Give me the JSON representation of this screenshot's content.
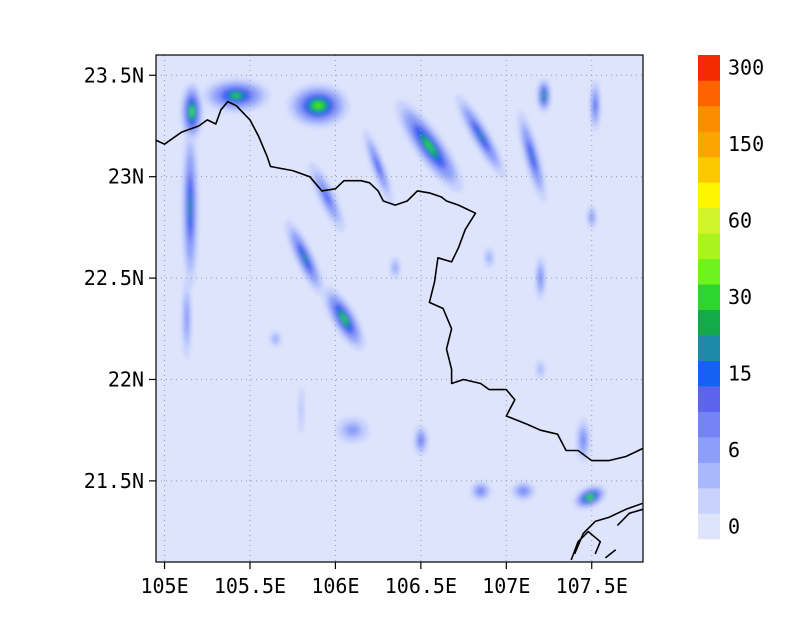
{
  "map": {
    "lon_range": [
      104.95,
      107.8
    ],
    "lat_range": [
      21.1,
      23.6
    ],
    "x_ticks": [
      {
        "value": 105.0,
        "label": "105E"
      },
      {
        "value": 105.5,
        "label": "105.5E"
      },
      {
        "value": 106.0,
        "label": "106E"
      },
      {
        "value": 106.5,
        "label": "106.5E"
      },
      {
        "value": 107.0,
        "label": "107E"
      },
      {
        "value": 107.5,
        "label": "107.5E"
      }
    ],
    "y_ticks": [
      {
        "value": 23.5,
        "label": "23.5N"
      },
      {
        "value": 23.0,
        "label": "23N"
      },
      {
        "value": 22.5,
        "label": "22.5N"
      },
      {
        "value": 22.0,
        "label": "22N"
      },
      {
        "value": 21.5,
        "label": "21.5N"
      }
    ],
    "gridlines": true,
    "background_color": "#dde4fc",
    "border_color": "#000000"
  },
  "colorbar": {
    "colors": [
      "#dde4fc",
      "#c8d2fc",
      "#a8b8fa",
      "#8c9efa",
      "#7484f6",
      "#5c64ee",
      "#1462f4",
      "#1c8aa8",
      "#12aa4a",
      "#2cd62c",
      "#6ef41c",
      "#a8f41c",
      "#d2f42c",
      "#fcf400",
      "#fcc800",
      "#fca400",
      "#fc8c00",
      "#fc6400",
      "#f42a00"
    ],
    "labels": [
      {
        "index": 0,
        "text": "0"
      },
      {
        "index": 3,
        "text": "6"
      },
      {
        "index": 6,
        "text": "15"
      },
      {
        "index": 9,
        "text": "30"
      },
      {
        "index": 12,
        "text": "60"
      },
      {
        "index": 15,
        "text": "150"
      },
      {
        "index": 18,
        "text": "300"
      }
    ]
  },
  "precip_fields": [
    {
      "lon": 105.15,
      "lat": 22.85,
      "rlon": 0.07,
      "rlat": 0.6,
      "rot": 0,
      "amp": 30
    },
    {
      "lon": 105.16,
      "lat": 23.32,
      "rlon": 0.09,
      "rlat": 0.2,
      "rot": 0,
      "amp": 55
    },
    {
      "lon": 105.13,
      "lat": 22.3,
      "rlon": 0.05,
      "rlat": 0.35,
      "rot": 0,
      "amp": 12
    },
    {
      "lon": 105.42,
      "lat": 23.4,
      "rlon": 0.28,
      "rlat": 0.12,
      "rot": 0,
      "amp": 40
    },
    {
      "lon": 105.9,
      "lat": 23.35,
      "rlon": 0.25,
      "rlat": 0.15,
      "rot": 0,
      "amp": 55
    },
    {
      "lon": 105.82,
      "lat": 22.6,
      "rlon": 0.08,
      "rlat": 0.3,
      "rot": -25,
      "amp": 30
    },
    {
      "lon": 106.05,
      "lat": 22.3,
      "rlon": 0.1,
      "rlat": 0.25,
      "rot": -30,
      "amp": 45
    },
    {
      "lon": 105.95,
      "lat": 22.9,
      "rlon": 0.08,
      "rlat": 0.3,
      "rot": -25,
      "amp": 18
    },
    {
      "lon": 106.55,
      "lat": 23.15,
      "rlon": 0.12,
      "rlat": 0.38,
      "rot": -35,
      "amp": 45
    },
    {
      "lon": 106.25,
      "lat": 23.05,
      "rlon": 0.06,
      "rlat": 0.3,
      "rot": -20,
      "amp": 20
    },
    {
      "lon": 106.85,
      "lat": 23.2,
      "rlon": 0.08,
      "rlat": 0.35,
      "rot": -30,
      "amp": 28
    },
    {
      "lon": 107.15,
      "lat": 23.1,
      "rlon": 0.07,
      "rlat": 0.35,
      "rot": -15,
      "amp": 25
    },
    {
      "lon": 107.22,
      "lat": 23.4,
      "rlon": 0.06,
      "rlat": 0.12,
      "rot": 0,
      "amp": 40
    },
    {
      "lon": 107.52,
      "lat": 23.35,
      "rlon": 0.05,
      "rlat": 0.2,
      "rot": 0,
      "amp": 20
    },
    {
      "lon": 107.49,
      "lat": 21.42,
      "rlon": 0.14,
      "rlat": 0.07,
      "rot": -25,
      "amp": 60
    },
    {
      "lon": 107.45,
      "lat": 21.7,
      "rlon": 0.07,
      "rlat": 0.18,
      "rot": 0,
      "amp": 14
    },
    {
      "lon": 106.85,
      "lat": 21.45,
      "rlon": 0.1,
      "rlat": 0.08,
      "rot": 0,
      "amp": 15
    },
    {
      "lon": 107.1,
      "lat": 21.45,
      "rlon": 0.12,
      "rlat": 0.08,
      "rot": 0,
      "amp": 14
    },
    {
      "lon": 106.5,
      "lat": 21.7,
      "rlon": 0.07,
      "rlat": 0.12,
      "rot": 0,
      "amp": 16
    },
    {
      "lon": 106.1,
      "lat": 21.75,
      "rlon": 0.18,
      "rlat": 0.12,
      "rot": 0,
      "amp": 10
    },
    {
      "lon": 107.2,
      "lat": 22.5,
      "rlon": 0.05,
      "rlat": 0.18,
      "rot": 0,
      "amp": 15
    },
    {
      "lon": 106.35,
      "lat": 22.55,
      "rlon": 0.06,
      "rlat": 0.1,
      "rot": 0,
      "amp": 9
    },
    {
      "lon": 105.65,
      "lat": 22.2,
      "rlon": 0.07,
      "rlat": 0.08,
      "rot": 0,
      "amp": 8
    },
    {
      "lon": 107.5,
      "lat": 22.8,
      "rlon": 0.05,
      "rlat": 0.1,
      "rot": 0,
      "amp": 12
    },
    {
      "lon": 107.2,
      "lat": 22.05,
      "rlon": 0.06,
      "rlat": 0.1,
      "rot": 0,
      "amp": 7
    },
    {
      "lon": 106.9,
      "lat": 22.6,
      "rlon": 0.06,
      "rlat": 0.1,
      "rot": 0,
      "amp": 8
    },
    {
      "lon": 105.8,
      "lat": 21.85,
      "rlon": 0.05,
      "rlat": 0.3,
      "rot": 0,
      "amp": 5
    }
  ],
  "borders": [
    [
      [
        104.95,
        23.18
      ],
      [
        105.0,
        23.16
      ],
      [
        105.1,
        23.22
      ],
      [
        105.2,
        23.25
      ],
      [
        105.25,
        23.28
      ],
      [
        105.3,
        23.26
      ],
      [
        105.33,
        23.33
      ],
      [
        105.37,
        23.37
      ],
      [
        105.42,
        23.35
      ],
      [
        105.5,
        23.28
      ],
      [
        105.55,
        23.2
      ],
      [
        105.6,
        23.1
      ],
      [
        105.62,
        23.05
      ],
      [
        105.75,
        23.03
      ],
      [
        105.85,
        23.0
      ],
      [
        105.92,
        22.93
      ],
      [
        106.0,
        22.94
      ],
      [
        106.05,
        22.98
      ],
      [
        106.15,
        22.98
      ],
      [
        106.2,
        22.97
      ],
      [
        106.25,
        22.93
      ],
      [
        106.28,
        22.88
      ],
      [
        106.35,
        22.86
      ],
      [
        106.42,
        22.88
      ],
      [
        106.48,
        22.93
      ],
      [
        106.55,
        22.92
      ],
      [
        106.62,
        22.9
      ],
      [
        106.65,
        22.88
      ],
      [
        106.72,
        22.86
      ],
      [
        106.82,
        22.82
      ],
      [
        106.76,
        22.74
      ],
      [
        106.72,
        22.65
      ],
      [
        106.68,
        22.58
      ],
      [
        106.6,
        22.6
      ],
      [
        106.58,
        22.48
      ],
      [
        106.55,
        22.38
      ],
      [
        106.63,
        22.35
      ],
      [
        106.68,
        22.25
      ],
      [
        106.65,
        22.15
      ],
      [
        106.68,
        22.05
      ],
      [
        106.68,
        21.98
      ],
      [
        106.75,
        22.0
      ],
      [
        106.85,
        21.98
      ],
      [
        106.9,
        21.95
      ],
      [
        107.0,
        21.95
      ],
      [
        107.05,
        21.9
      ],
      [
        107.0,
        21.82
      ],
      [
        107.12,
        21.78
      ],
      [
        107.2,
        21.75
      ],
      [
        107.3,
        21.73
      ],
      [
        107.35,
        21.65
      ],
      [
        107.42,
        21.65
      ],
      [
        107.5,
        21.6
      ],
      [
        107.6,
        21.6
      ],
      [
        107.7,
        21.62
      ],
      [
        107.8,
        21.66
      ]
    ],
    [
      [
        107.4,
        21.14
      ],
      [
        107.45,
        21.24
      ],
      [
        107.52,
        21.3
      ],
      [
        107.6,
        21.32
      ],
      [
        107.7,
        21.36
      ],
      [
        107.8,
        21.39
      ]
    ],
    [
      [
        107.38,
        21.11
      ],
      [
        107.42,
        21.2
      ],
      [
        107.48,
        21.25
      ],
      [
        107.55,
        21.2
      ],
      [
        107.52,
        21.14
      ]
    ],
    [
      [
        107.65,
        21.28
      ],
      [
        107.72,
        21.34
      ],
      [
        107.8,
        21.36
      ]
    ],
    [
      [
        107.58,
        21.12
      ],
      [
        107.64,
        21.16
      ]
    ]
  ]
}
